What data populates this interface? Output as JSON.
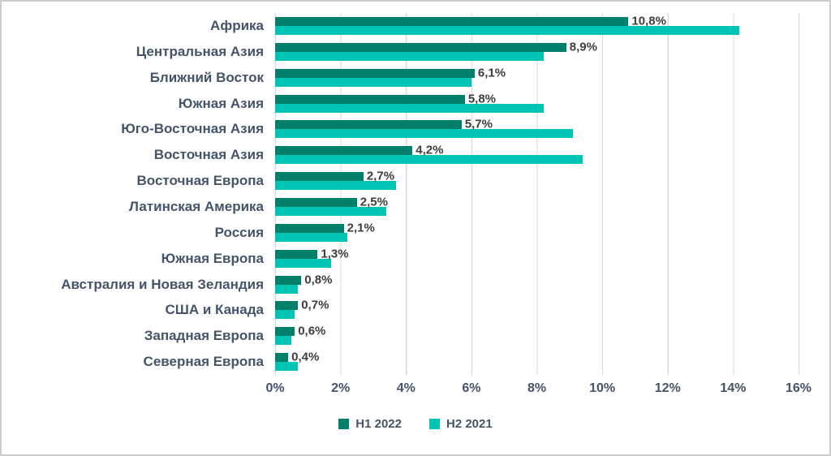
{
  "chart_data": {
    "type": "bar",
    "orientation": "horizontal",
    "title": "",
    "xlabel": "",
    "ylabel": "",
    "xlim": [
      0,
      16
    ],
    "grid": true,
    "legend_position": "bottom",
    "categories": [
      "Африка",
      "Центральная Азия",
      "Ближний Восток",
      "Южная Азия",
      "Юго-Восточная Азия",
      "Восточная Азия",
      "Восточная Европа",
      "Латинская Америка",
      "Россия",
      "Южная Европа",
      "Австралия и Новая Зеландия",
      "США и Канада",
      "Западная Европа",
      "Северная Европа"
    ],
    "series": [
      {
        "name": "H1 2022",
        "color": "#00806B",
        "values": [
          10.8,
          8.9,
          6.1,
          5.8,
          5.7,
          4.2,
          2.7,
          2.5,
          2.1,
          1.3,
          0.8,
          0.7,
          0.6,
          0.4
        ]
      },
      {
        "name": "H2 2021",
        "color": "#00C4B4",
        "values": [
          14.2,
          8.2,
          6.0,
          8.2,
          9.1,
          9.4,
          3.7,
          3.4,
          2.2,
          1.7,
          0.7,
          0.6,
          0.5,
          0.7
        ]
      }
    ],
    "data_labels": [
      "10,8%",
      "8,9%",
      "6,1%",
      "5,8%",
      "5,7%",
      "4,2%",
      "2,7%",
      "2,5%",
      "2,1%",
      "1,3%",
      "0,8%",
      "0,7%",
      "0,6%",
      "0,4%"
    ],
    "xticks": [
      "0%",
      "2%",
      "4%",
      "6%",
      "8%",
      "10%",
      "12%",
      "14%",
      "16%"
    ]
  },
  "colors": {
    "grid": "#d9d9d9",
    "axis_text": "#44546A",
    "data_label_text": "#3d3d3d",
    "background": "#ffffff",
    "border": "#cbcbcb"
  }
}
